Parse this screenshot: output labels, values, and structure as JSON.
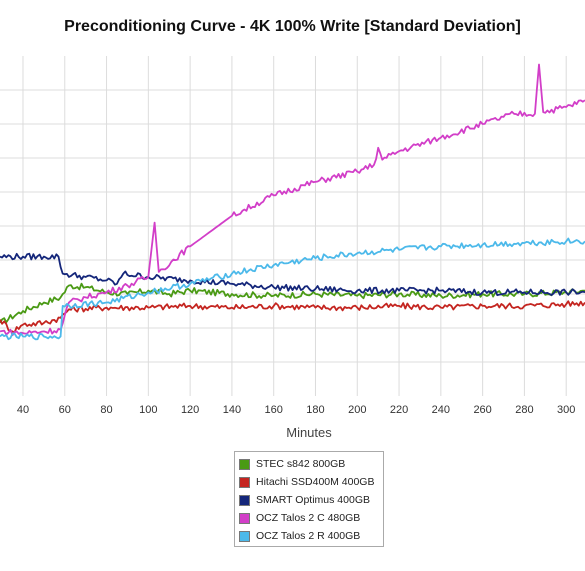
{
  "chart_data": {
    "type": "line",
    "title": "Preconditioning Curve - 4K 100% Write [Standard Deviation]",
    "xlabel": "Minutes",
    "ylabel": "",
    "xlim": [
      29,
      309
    ],
    "ylim": [
      0,
      10
    ],
    "x_ticks": [
      40,
      60,
      80,
      100,
      120,
      140,
      160,
      180,
      200,
      220,
      240,
      260,
      280,
      300
    ],
    "x_tick_labels": [
      "40",
      "60",
      "80",
      "100",
      "120",
      "140",
      "160",
      "180",
      "200",
      "220",
      "240",
      "260",
      "280",
      "300"
    ],
    "y_gridlines": [
      1,
      2,
      3,
      4,
      5,
      6,
      7,
      8,
      9
    ],
    "grid": true,
    "legend_position": "bottom",
    "series": [
      {
        "name": "STEC s842 800GB",
        "color": "#4a9a14",
        "points": [
          [
            29,
            2.15
          ],
          [
            40,
            2.5
          ],
          [
            50,
            2.75
          ],
          [
            58,
            2.9
          ],
          [
            62,
            3.25
          ],
          [
            70,
            3.2
          ],
          [
            80,
            3.05
          ],
          [
            90,
            3.0
          ],
          [
            100,
            3.1
          ],
          [
            110,
            3.0
          ],
          [
            120,
            3.1
          ],
          [
            140,
            3.0
          ],
          [
            160,
            2.95
          ],
          [
            180,
            3.0
          ],
          [
            200,
            2.95
          ],
          [
            220,
            3.0
          ],
          [
            240,
            2.95
          ],
          [
            260,
            3.0
          ],
          [
            280,
            3.0
          ],
          [
            300,
            3.05
          ],
          [
            309,
            3.1
          ]
        ]
      },
      {
        "name": "Hitachi SSD400M 400GB",
        "color": "#c42520",
        "points": [
          [
            29,
            2.25
          ],
          [
            35,
            1.9
          ],
          [
            40,
            2.1
          ],
          [
            50,
            2.15
          ],
          [
            58,
            2.3
          ],
          [
            62,
            2.55
          ],
          [
            80,
            2.6
          ],
          [
            100,
            2.6
          ],
          [
            120,
            2.65
          ],
          [
            140,
            2.6
          ],
          [
            160,
            2.65
          ],
          [
            180,
            2.6
          ],
          [
            200,
            2.6
          ],
          [
            220,
            2.65
          ],
          [
            240,
            2.6
          ],
          [
            260,
            2.65
          ],
          [
            280,
            2.65
          ],
          [
            300,
            2.7
          ],
          [
            309,
            2.75
          ]
        ]
      },
      {
        "name": "SMART Optimus 400GB",
        "color": "#14267a",
        "points": [
          [
            29,
            4.1
          ],
          [
            40,
            4.1
          ],
          [
            50,
            4.1
          ],
          [
            57,
            4.1
          ],
          [
            59,
            3.6
          ],
          [
            70,
            3.5
          ],
          [
            80,
            3.4
          ],
          [
            85,
            3.3
          ],
          [
            88,
            3.6
          ],
          [
            100,
            3.5
          ],
          [
            120,
            3.4
          ],
          [
            140,
            3.3
          ],
          [
            160,
            3.2
          ],
          [
            180,
            3.15
          ],
          [
            200,
            3.1
          ],
          [
            220,
            3.1
          ],
          [
            240,
            3.1
          ],
          [
            260,
            3.05
          ],
          [
            280,
            3.05
          ],
          [
            300,
            3.05
          ],
          [
            309,
            3.05
          ]
        ]
      },
      {
        "name": "OCZ Talos 2 C 480GB",
        "color": "#d23ec8",
        "points": [
          [
            29,
            1.9
          ],
          [
            40,
            1.85
          ],
          [
            50,
            1.9
          ],
          [
            58,
            1.95
          ],
          [
            62,
            2.75
          ],
          [
            70,
            2.9
          ],
          [
            80,
            3.05
          ],
          [
            90,
            3.25
          ],
          [
            100,
            3.5
          ],
          [
            103,
            5.1
          ],
          [
            105,
            3.65
          ],
          [
            120,
            4.4
          ],
          [
            140,
            5.3
          ],
          [
            160,
            5.9
          ],
          [
            180,
            6.3
          ],
          [
            200,
            6.6
          ],
          [
            208,
            6.8
          ],
          [
            210,
            7.3
          ],
          [
            212,
            6.95
          ],
          [
            220,
            7.2
          ],
          [
            240,
            7.6
          ],
          [
            260,
            8.0
          ],
          [
            275,
            8.3
          ],
          [
            285,
            8.3
          ],
          [
            287,
            9.75
          ],
          [
            289,
            8.35
          ],
          [
            300,
            8.5
          ],
          [
            309,
            8.7
          ]
        ]
      },
      {
        "name": "OCZ Talos 2 R 400GB",
        "color": "#4cb9ea",
        "points": [
          [
            29,
            1.75
          ],
          [
            40,
            1.75
          ],
          [
            50,
            1.75
          ],
          [
            58,
            1.75
          ],
          [
            59,
            2.65
          ],
          [
            80,
            2.75
          ],
          [
            100,
            3.05
          ],
          [
            120,
            3.3
          ],
          [
            140,
            3.6
          ],
          [
            160,
            3.85
          ],
          [
            180,
            4.05
          ],
          [
            200,
            4.2
          ],
          [
            220,
            4.3
          ],
          [
            240,
            4.4
          ],
          [
            260,
            4.45
          ],
          [
            280,
            4.5
          ],
          [
            300,
            4.55
          ],
          [
            309,
            4.55
          ]
        ]
      }
    ]
  }
}
